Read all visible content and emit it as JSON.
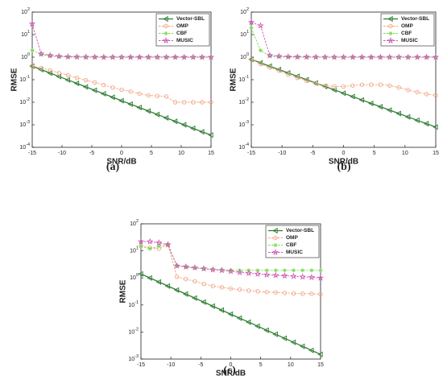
{
  "chart_data": [
    {
      "type": "line",
      "panel_label": "(a)",
      "xlabel": "SNR/dB",
      "ylabel": "RMSE",
      "log_y": true,
      "legend": "upper right",
      "x": [
        -15,
        -13.5,
        -12,
        -10.5,
        -9,
        -7.5,
        -6,
        -4.5,
        -3,
        -1.5,
        0,
        1.5,
        3,
        4.5,
        6,
        7.5,
        9,
        10.5,
        12,
        13.5,
        15
      ],
      "xlim": [
        -15,
        15
      ],
      "xticks": [
        -15,
        -10,
        -5,
        0,
        5,
        10,
        15
      ],
      "ylim": [
        0.0001,
        100
      ],
      "yticks": [
        {
          "value": 0.0001,
          "label": "10^-4"
        },
        {
          "value": 0.001,
          "label": "10^-3"
        },
        {
          "value": 0.01,
          "label": "10^-2"
        },
        {
          "value": 0.1,
          "label": "10^-1"
        },
        {
          "value": 1,
          "label": "10^0"
        },
        {
          "value": 10,
          "label": "10^1"
        },
        {
          "value": 100,
          "label": "10^2"
        }
      ],
      "series": [
        {
          "name": "Vector-SBL",
          "color": "#2e7d32",
          "marker": "triangle-left",
          "values": [
            0.398,
            0.28,
            0.197,
            0.138,
            0.0973,
            0.0684,
            0.0481,
            0.0338,
            0.0238,
            0.0167,
            0.0117,
            0.00826,
            0.00581,
            0.00408,
            0.00287,
            0.00202,
            0.00142,
            0.001,
            0.0007,
            0.00049,
            0.00035
          ]
        },
        {
          "name": "OMP",
          "color": "#f2a07f",
          "marker": "circle",
          "values": [
            0.4,
            0.33,
            0.26,
            0.2,
            0.16,
            0.12,
            0.095,
            0.075,
            0.058,
            0.045,
            0.036,
            0.03,
            0.024,
            0.02,
            0.019,
            0.018,
            0.01,
            0.01,
            0.01,
            0.01,
            0.01
          ]
        },
        {
          "name": "CBF",
          "color": "#7ed957",
          "marker": "asterisk",
          "values": [
            2,
            1.3,
            1.1,
            1.05,
            1,
            1,
            1,
            1,
            1,
            1,
            1,
            1,
            1,
            1,
            1,
            1,
            1,
            1,
            1,
            1,
            1
          ]
        },
        {
          "name": "MUSIC",
          "color": "#cc55b0",
          "marker": "star",
          "values": [
            30,
            1.4,
            1.2,
            1.1,
            1.05,
            1.03,
            1.02,
            1.01,
            1,
            1,
            1,
            1,
            1,
            1,
            1,
            1,
            1,
            1,
            1,
            1,
            1
          ]
        }
      ]
    },
    {
      "type": "line",
      "panel_label": "(b)",
      "xlabel": "SNR/dB",
      "ylabel": "RMSE",
      "log_y": true,
      "legend": "upper right",
      "x": [
        -15,
        -13.5,
        -12,
        -10.5,
        -9,
        -7.5,
        -6,
        -4.5,
        -3,
        -1.5,
        0,
        1.5,
        3,
        4.5,
        6,
        7.5,
        9,
        10.5,
        12,
        13.5,
        15
      ],
      "xlim": [
        -15,
        15
      ],
      "xticks": [
        -15,
        -10,
        -5,
        0,
        5,
        10,
        15
      ],
      "ylim": [
        0.0001,
        100
      ],
      "yticks": [
        {
          "value": 0.0001,
          "label": "10^-4"
        },
        {
          "value": 0.001,
          "label": "10^-3"
        },
        {
          "value": 0.01,
          "label": "10^-2"
        },
        {
          "value": 0.1,
          "label": "10^-1"
        },
        {
          "value": 1,
          "label": "10^0"
        },
        {
          "value": 10,
          "label": "10^1"
        },
        {
          "value": 100,
          "label": "10^2"
        }
      ],
      "series": [
        {
          "name": "Vector-SBL",
          "color": "#2e7d32",
          "marker": "triangle-left",
          "values": [
            0.794,
            0.562,
            0.398,
            0.282,
            0.2,
            0.141,
            0.1,
            0.0708,
            0.0501,
            0.0355,
            0.0251,
            0.0178,
            0.0126,
            0.00891,
            0.00631,
            0.00447,
            0.00316,
            0.00224,
            0.00158,
            0.00112,
            0.000794
          ]
        },
        {
          "name": "OMP",
          "color": "#f2a07f",
          "marker": "circle",
          "values": [
            0.8,
            0.5,
            0.35,
            0.25,
            0.17,
            0.12,
            0.09,
            0.07,
            0.055,
            0.05,
            0.05,
            0.055,
            0.06,
            0.06,
            0.06,
            0.055,
            0.045,
            0.035,
            0.028,
            0.023,
            0.02
          ]
        },
        {
          "name": "CBF",
          "color": "#7ed957",
          "marker": "asterisk",
          "values": [
            20,
            2,
            1.1,
            1.05,
            1,
            1,
            1,
            1,
            1,
            1,
            1,
            1,
            1,
            1,
            1,
            1,
            1,
            1,
            1,
            1,
            1
          ]
        },
        {
          "name": "MUSIC",
          "color": "#cc55b0",
          "marker": "star",
          "values": [
            35,
            25,
            1.2,
            1.1,
            1.05,
            1.03,
            1.02,
            1.01,
            1,
            1,
            1,
            1,
            1,
            1,
            1,
            1,
            1,
            1,
            1,
            1,
            1
          ]
        }
      ]
    },
    {
      "type": "line",
      "panel_label": "(c)",
      "xlabel": "SNR/dB",
      "ylabel": "RMSE",
      "log_y": true,
      "legend": "upper right",
      "x": [
        -15,
        -13.5,
        -12,
        -10.5,
        -9,
        -7.5,
        -6,
        -4.5,
        -3,
        -1.5,
        0,
        1.5,
        3,
        4.5,
        6,
        7.5,
        9,
        10.5,
        12,
        13.5,
        15
      ],
      "xlim": [
        -15,
        15
      ],
      "xticks": [
        -15,
        -10,
        -5,
        0,
        5,
        10,
        15
      ],
      "ylim": [
        0.001,
        100
      ],
      "yticks": [
        {
          "value": 0.001,
          "label": "10^-3"
        },
        {
          "value": 0.01,
          "label": "10^-2"
        },
        {
          "value": 0.1,
          "label": "10^-1"
        },
        {
          "value": 1,
          "label": "10^0"
        },
        {
          "value": 10,
          "label": "10^1"
        },
        {
          "value": 100,
          "label": "10^2"
        }
      ],
      "series": [
        {
          "name": "Vector-SBL",
          "color": "#2e7d32",
          "marker": "triangle-left",
          "values": [
            1.4,
            0.995,
            0.706,
            0.502,
            0.356,
            0.253,
            0.18,
            0.128,
            0.0907,
            0.0644,
            0.0457,
            0.0325,
            0.0231,
            0.0164,
            0.0116,
            0.00826,
            0.00587,
            0.00417,
            0.00296,
            0.0021,
            0.00149
          ]
        },
        {
          "name": "OMP",
          "color": "#f2a07f",
          "marker": "circle",
          "values": [
            15,
            13,
            12,
            17,
            1.1,
            0.9,
            0.75,
            0.6,
            0.5,
            0.45,
            0.4,
            0.37,
            0.34,
            0.32,
            0.3,
            0.29,
            0.28,
            0.27,
            0.26,
            0.26,
            0.25
          ]
        },
        {
          "name": "CBF",
          "color": "#7ed957",
          "marker": "asterisk",
          "values": [
            15,
            12,
            15,
            17,
            2.8,
            2.5,
            2.3,
            2.2,
            2.1,
            2,
            1.95,
            1.9,
            1.9,
            1.9,
            1.9,
            1.9,
            1.9,
            1.9,
            1.9,
            1.9,
            1.9
          ]
        },
        {
          "name": "MUSIC",
          "color": "#cc55b0",
          "marker": "star",
          "values": [
            22,
            22,
            20,
            17,
            2.8,
            2.6,
            2.4,
            2.2,
            2,
            1.9,
            1.75,
            1.6,
            1.5,
            1.4,
            1.3,
            1.25,
            1.2,
            1.15,
            1.1,
            1.05,
            1
          ]
        }
      ]
    }
  ]
}
